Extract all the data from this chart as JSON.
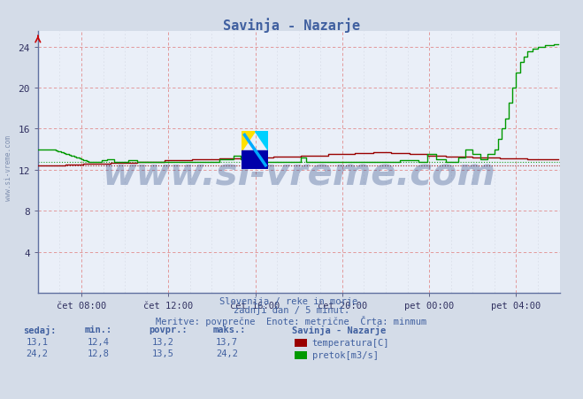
{
  "title": "Savinja - Nazarje",
  "title_color": "#4060a0",
  "bg_color": "#d4dce8",
  "plot_bg_color": "#eaeff8",
  "grid_color_major": "#e08080",
  "grid_color_minor": "#c8ccd8",
  "xlim": [
    0,
    288
  ],
  "ylim": [
    0,
    25.5
  ],
  "yticks": [
    4,
    8,
    12,
    16,
    20,
    24
  ],
  "ytick_label_vals": [
    4,
    8,
    12,
    16,
    20,
    24
  ],
  "xtick_labels": [
    "čet 08:00",
    "čet 12:00",
    "čet 16:00",
    "čet 20:00",
    "pet 00:00",
    "pet 04:00"
  ],
  "xtick_positions": [
    24,
    72,
    120,
    168,
    216,
    264
  ],
  "minor_xtick_positions": [
    0,
    12,
    36,
    48,
    60,
    84,
    96,
    108,
    132,
    144,
    156,
    180,
    192,
    204,
    228,
    240,
    252,
    276,
    288
  ],
  "temp_color": "#990000",
  "flow_color": "#009900",
  "min_temp": 12.4,
  "min_flow": 12.8,
  "subtitle1": "Slovenija / reke in morje.",
  "subtitle2": "zadnji dan / 5 minut.",
  "subtitle3": "Meritve: povprečne  Enote: metrične  Črta: minmum",
  "subtitle_color": "#4060a0",
  "watermark_text": "www.si-vreme.com",
  "watermark_color": "#1a3a7a",
  "table_headers": [
    "sedaj:",
    "min.:",
    "povpr.:",
    "maks.:"
  ],
  "table_temp": [
    "13,1",
    "12,4",
    "13,2",
    "13,7"
  ],
  "table_flow": [
    "24,2",
    "12,8",
    "13,5",
    "24,2"
  ],
  "legend_title": "Savinja - Nazarje",
  "legend_temp": "temperatura[C]",
  "legend_flow": "pretok[m3/s]",
  "sidebar_text": "www.si-vreme.com",
  "axis_color": "#6070a0",
  "arrow_color": "#cc0000"
}
